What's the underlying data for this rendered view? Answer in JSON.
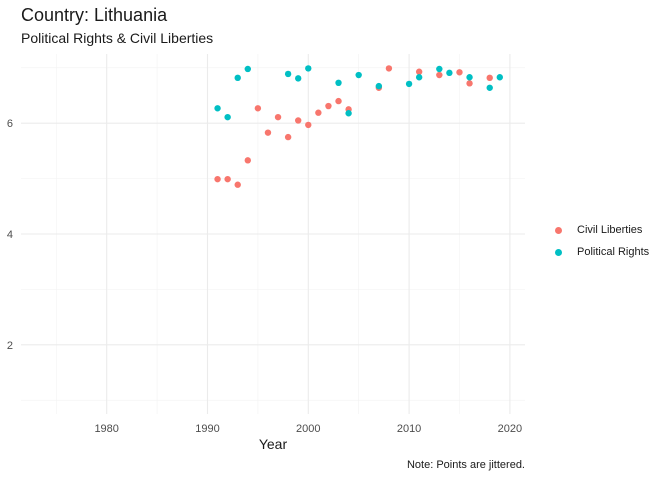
{
  "chart_data": {
    "type": "scatter",
    "title": "Country: Lithuania",
    "subtitle": "Political Rights & Civil Liberties",
    "xlabel": "Year",
    "ylabel": "",
    "caption": "Note: Points are jittered.",
    "xlim": [
      1971.5,
      2021.5
    ],
    "ylim": [
      0.75,
      7.25
    ],
    "x_ticks": [
      1980,
      1990,
      2000,
      2010,
      2020
    ],
    "y_ticks": [
      2,
      4,
      6
    ],
    "grid": true,
    "legend_position": "right",
    "series": [
      {
        "name": "Civil Liberties",
        "color": "#F8766D",
        "points": [
          [
            1991,
            4.99
          ],
          [
            1992,
            4.99
          ],
          [
            1993,
            4.89
          ],
          [
            1994,
            5.33
          ],
          [
            1995,
            6.27
          ],
          [
            1996,
            5.83
          ],
          [
            1997,
            6.11
          ],
          [
            1998,
            5.75
          ],
          [
            1999,
            6.05
          ],
          [
            2000,
            5.97
          ],
          [
            2001,
            6.19
          ],
          [
            2002,
            6.31
          ],
          [
            2003,
            6.4
          ],
          [
            2004,
            6.25
          ],
          [
            2007,
            6.64
          ],
          [
            2008,
            6.99
          ],
          [
            2011,
            6.93
          ],
          [
            2013,
            6.87
          ],
          [
            2015,
            6.92
          ],
          [
            2016,
            6.72
          ],
          [
            2018,
            6.82
          ]
        ]
      },
      {
        "name": "Political Rights",
        "color": "#00BFC4",
        "points": [
          [
            1991,
            6.27
          ],
          [
            1992,
            6.11
          ],
          [
            1993,
            6.82
          ],
          [
            1994,
            6.98
          ],
          [
            1998,
            6.89
          ],
          [
            1999,
            6.81
          ],
          [
            2000,
            6.99
          ],
          [
            2003,
            6.73
          ],
          [
            2004,
            6.18
          ],
          [
            2005,
            6.87
          ],
          [
            2007,
            6.67
          ],
          [
            2010,
            6.71
          ],
          [
            2011,
            6.83
          ],
          [
            2013,
            6.98
          ],
          [
            2014,
            6.91
          ],
          [
            2016,
            6.83
          ],
          [
            2018,
            6.64
          ],
          [
            2019,
            6.83
          ]
        ]
      }
    ]
  }
}
